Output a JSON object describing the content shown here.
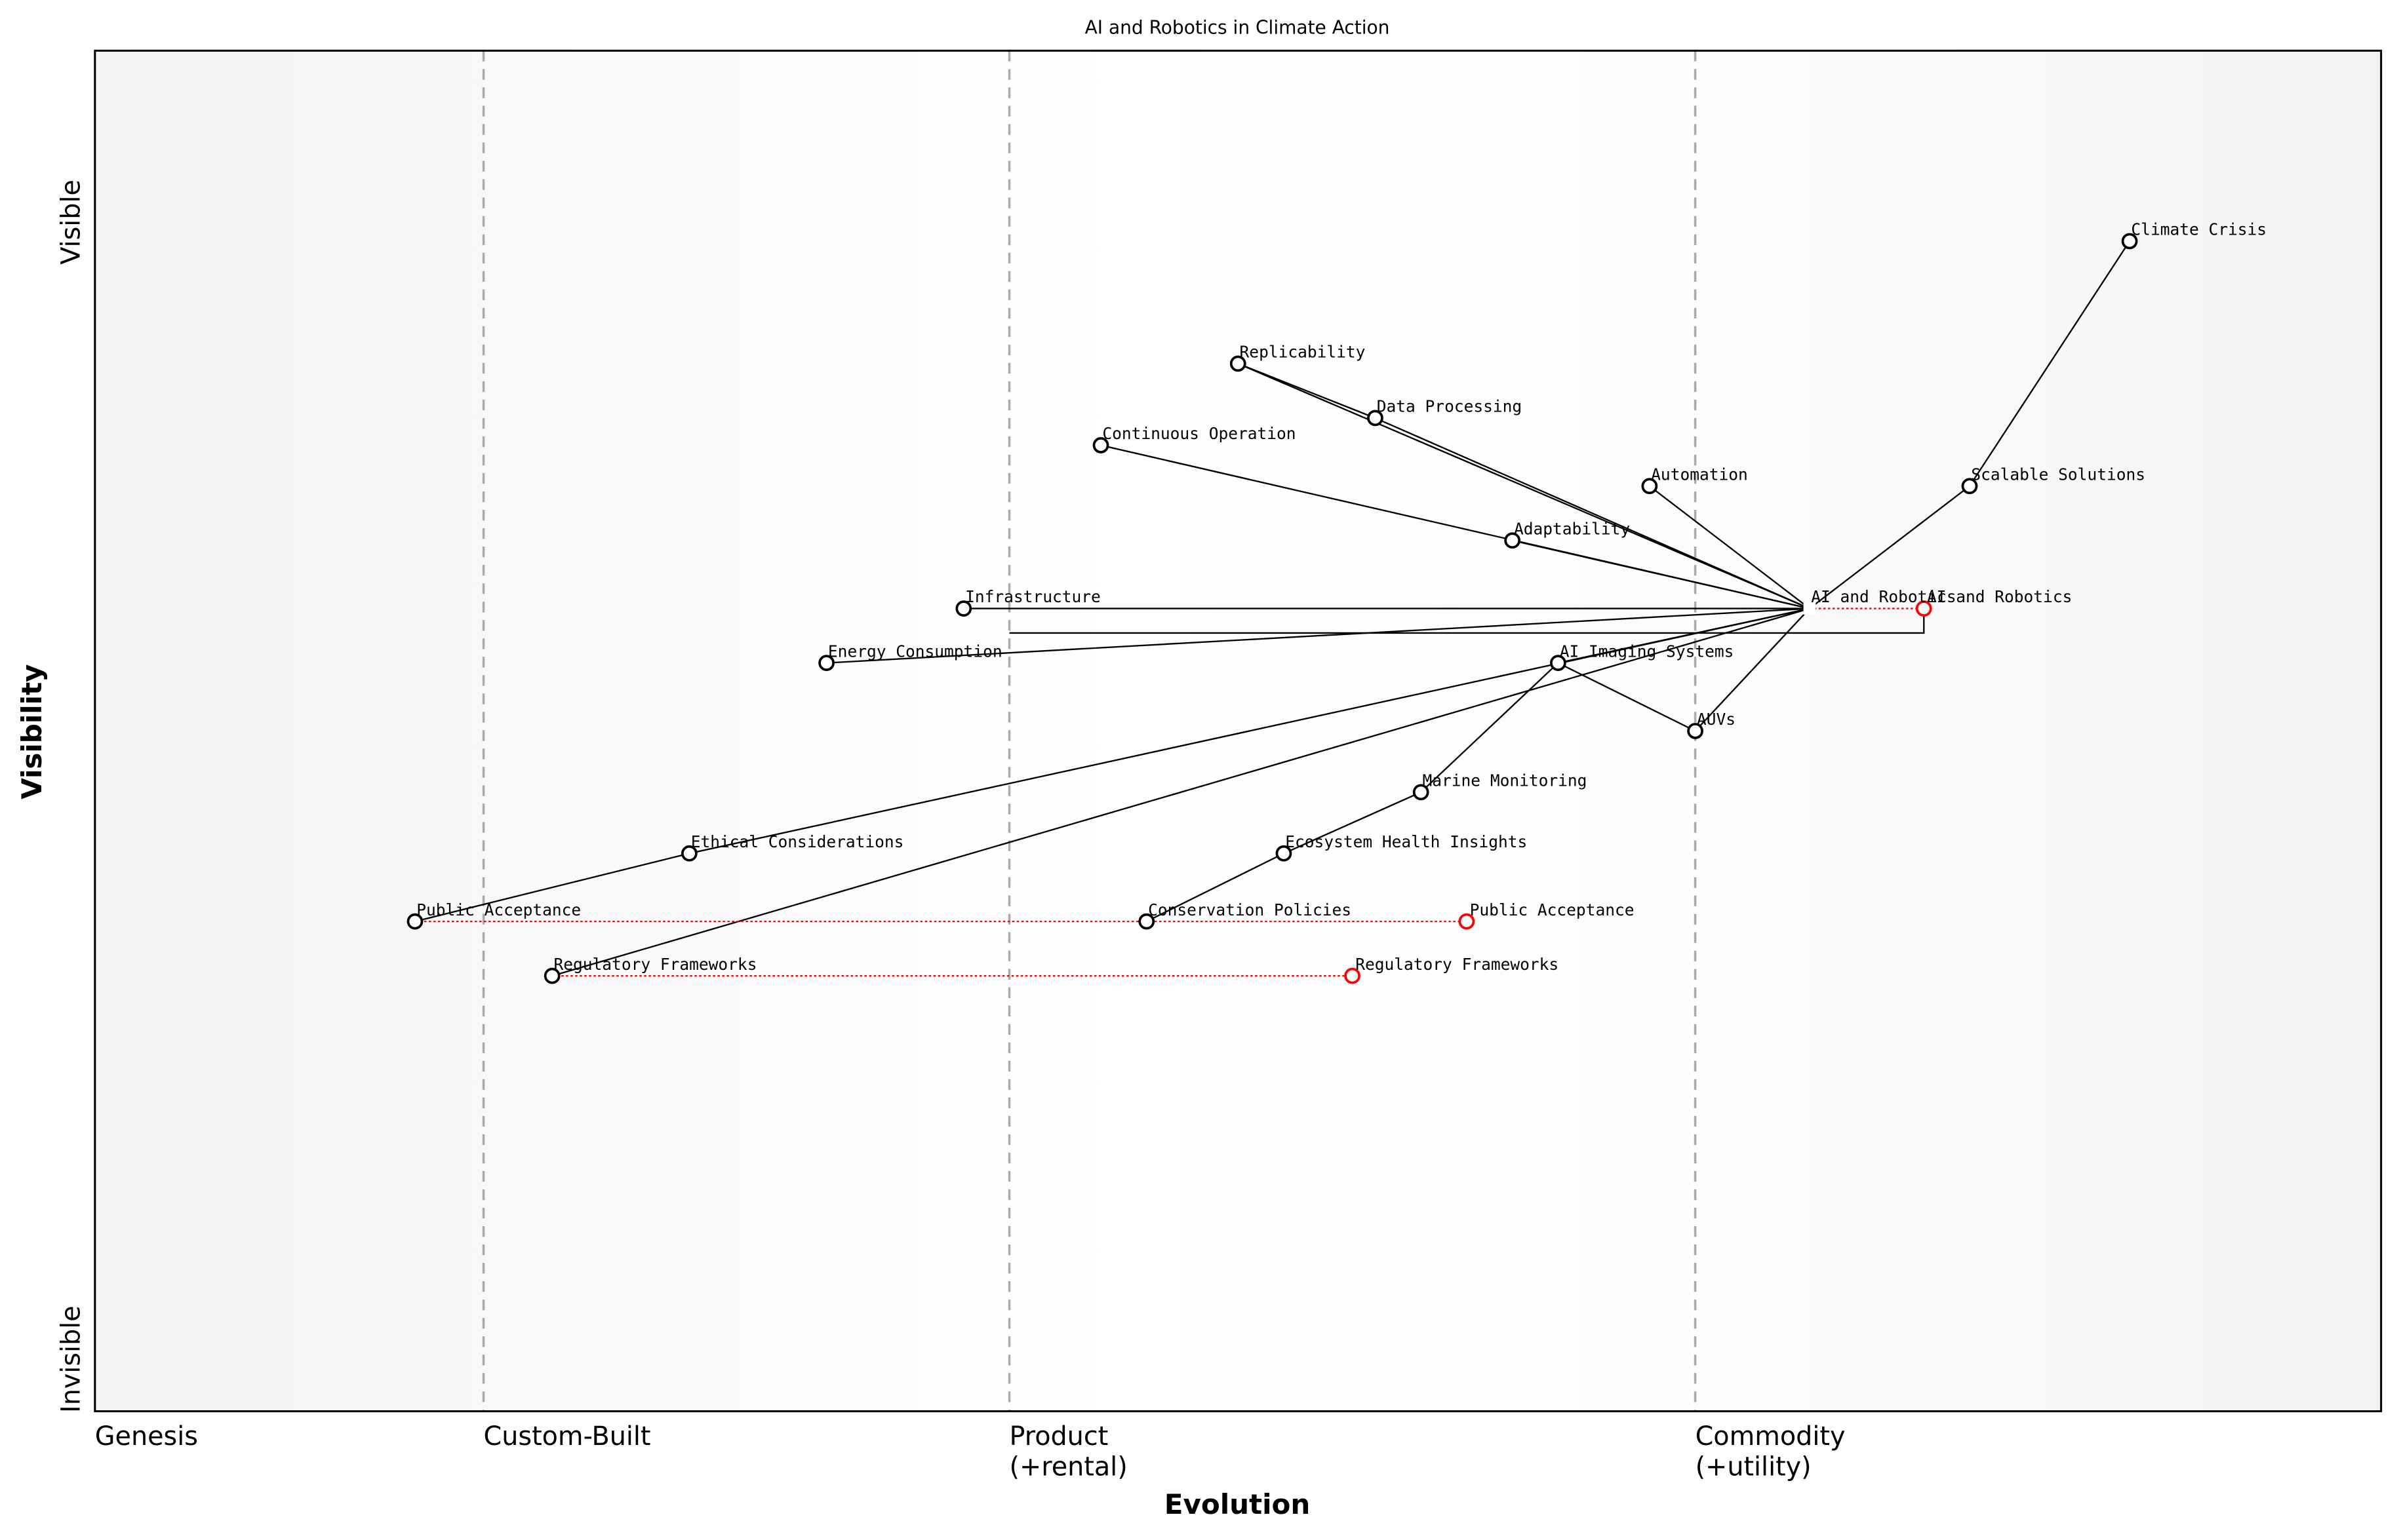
{
  "title": "AI and Robotics in Climate Action",
  "chart_data": {
    "type": "wardley-map",
    "title": "AI and Robotics in Climate Action",
    "xlabel": "Evolution",
    "ylabel": "Visibility",
    "xlim": [
      0,
      1
    ],
    "ylim": [
      0,
      1
    ],
    "y_ends": {
      "top": "Visible",
      "bottom": "Invisible"
    },
    "stages": [
      {
        "label": "Genesis",
        "at": 0.0
      },
      {
        "label": "Custom-Built",
        "at": 0.17
      },
      {
        "label": "Product\n(+rental)",
        "at": 0.4
      },
      {
        "label": "Commodity\n(+utility)",
        "at": 0.7
      }
    ],
    "components": [
      {
        "name": "Climate Crisis",
        "evolution": 0.89,
        "visibility": 0.86
      },
      {
        "name": "Replicability",
        "evolution": 0.5,
        "visibility": 0.77
      },
      {
        "name": "Data Processing",
        "evolution": 0.56,
        "visibility": 0.73
      },
      {
        "name": "Continuous Operation",
        "evolution": 0.44,
        "visibility": 0.71
      },
      {
        "name": "Automation",
        "evolution": 0.68,
        "visibility": 0.68
      },
      {
        "name": "Scalable Solutions",
        "evolution": 0.82,
        "visibility": 0.68
      },
      {
        "name": "Adaptability",
        "evolution": 0.62,
        "visibility": 0.64
      },
      {
        "name": "Infrastructure",
        "evolution": 0.38,
        "visibility": 0.59
      },
      {
        "name": "AI and Robotics",
        "evolution": 0.75,
        "visibility": 0.59,
        "marker": "anchor"
      },
      {
        "name": "Energy Consumption",
        "evolution": 0.32,
        "visibility": 0.55
      },
      {
        "name": "AI Imaging Systems",
        "evolution": 0.64,
        "visibility": 0.55
      },
      {
        "name": "AUVs",
        "evolution": 0.7,
        "visibility": 0.5
      },
      {
        "name": "Marine Monitoring",
        "evolution": 0.58,
        "visibility": 0.455
      },
      {
        "name": "Ecosystem Health Insights",
        "evolution": 0.52,
        "visibility": 0.41
      },
      {
        "name": "Ethical Considerations",
        "evolution": 0.26,
        "visibility": 0.41
      },
      {
        "name": "Public Acceptance",
        "evolution": 0.14,
        "visibility": 0.36
      },
      {
        "name": "Conservation Policies",
        "evolution": 0.46,
        "visibility": 0.36
      },
      {
        "name": "Regulatory Frameworks",
        "evolution": 0.2,
        "visibility": 0.32
      }
    ],
    "evolved": [
      {
        "name": "AI and Robotics",
        "from": 0.75,
        "to": 0.8,
        "visibility": 0.59
      },
      {
        "name": "Public Acceptance",
        "from": 0.14,
        "to": 0.6,
        "visibility": 0.36
      },
      {
        "name": "Regulatory Frameworks",
        "from": 0.2,
        "to": 0.55,
        "visibility": 0.32
      }
    ],
    "pipeline": {
      "component": "AI and Robotics",
      "start": 0.4,
      "end": 0.8
    },
    "links": [
      [
        "Climate Crisis",
        "Scalable Solutions"
      ],
      [
        "Scalable Solutions",
        "AI and Robotics"
      ],
      [
        "Replicability",
        "Data Processing"
      ],
      [
        "Replicability",
        "AI and Robotics"
      ],
      [
        "Data Processing",
        "AI and Robotics"
      ],
      [
        "Continuous Operation",
        "AI and Robotics"
      ],
      [
        "Adaptability",
        "AI and Robotics"
      ],
      [
        "Automation",
        "AI and Robotics"
      ],
      [
        "Infrastructure",
        "AI and Robotics"
      ],
      [
        "Energy Consumption",
        "AI and Robotics"
      ],
      [
        "Public Acceptance",
        "Ethical Considerations"
      ],
      [
        "Ethical Considerations",
        "AI and Robotics"
      ],
      [
        "AI Imaging Systems",
        "AI and Robotics"
      ],
      [
        "Regulatory Frameworks",
        "AI and Robotics"
      ],
      [
        "AI Imaging Systems",
        "AUVs"
      ],
      [
        "AUVs",
        "AI and Robotics"
      ],
      [
        "Marine Monitoring",
        "AI Imaging Systems"
      ],
      [
        "Ecosystem Health Insights",
        "Marine Monitoring"
      ],
      [
        "Conservation Policies",
        "Ecosystem Health Insights"
      ]
    ],
    "colors": {
      "component": "#000000",
      "evolved": "#ff0000",
      "stage_line": "#aaaaaa",
      "background_edge": "#f3f3f3",
      "background_center": "#ffffff"
    }
  }
}
